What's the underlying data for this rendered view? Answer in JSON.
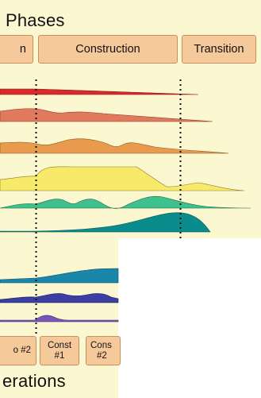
{
  "colors": {
    "background": "#fbf7d0",
    "phase_box": "#f6c99b",
    "phase_box_border": "#c98f5e",
    "milestone_line": "#111111"
  },
  "phases": {
    "title": "Phases",
    "items": [
      {
        "label": "n"
      },
      {
        "label": "Construction"
      },
      {
        "label": "Transition"
      }
    ]
  },
  "iterations": {
    "title": "erations",
    "items": [
      {
        "label": "#2",
        "prefix": "o"
      },
      {
        "line1": "Const",
        "line2": "#1"
      },
      {
        "line1": "Cons",
        "line2": "#2"
      }
    ]
  },
  "workflow_colors": [
    "#d9292b",
    "#e07a5f",
    "#e99a4c",
    "#f7ea6b",
    "#3fc08f",
    "#0a8c8c",
    "#1a86a8",
    "#3b3ea3",
    "#7a55b8"
  ]
}
